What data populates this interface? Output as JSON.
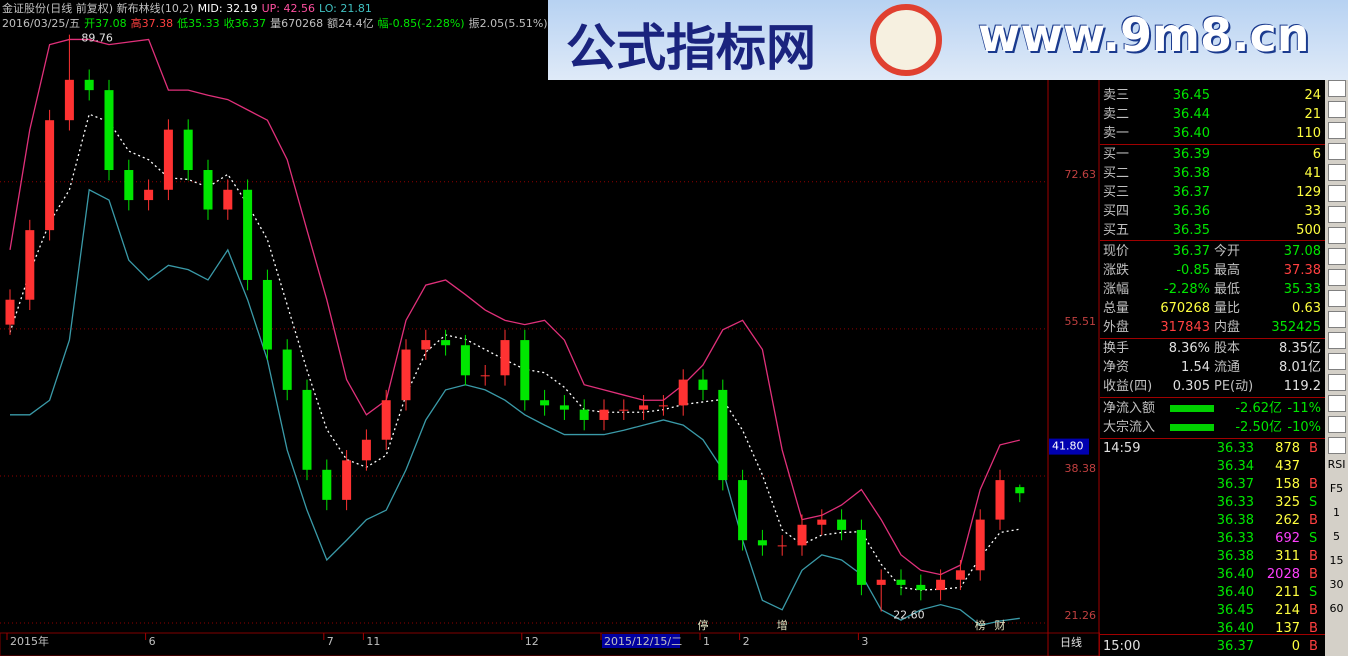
{
  "header": {
    "line1": [
      {
        "text": "金证股份(日线 前复权) 新布林线(10,2)",
        "color": "#c0c0c0"
      },
      {
        "text": "MID: 32.19",
        "color": "#ffffff"
      },
      {
        "text": "UP: 42.56",
        "color": "#ff50a0"
      },
      {
        "text": "LO: 21.81",
        "color": "#40c0c0"
      }
    ],
    "line2": [
      {
        "text": "2016/03/25/五",
        "color": "#c0c0c0"
      },
      {
        "text": "开37.08",
        "color": "#00e600"
      },
      {
        "text": "高37.38",
        "color": "#ff4040"
      },
      {
        "text": "低35.33",
        "color": "#00e600"
      },
      {
        "text": "收36.37",
        "color": "#00e600"
      },
      {
        "text": "量670268",
        "color": "#c0c0c0"
      },
      {
        "text": "额24.4亿",
        "color": "#c0c0c0"
      },
      {
        "text": "幅-0.85(-2.28%)",
        "color": "#00e600"
      },
      {
        "text": "振2.05(5.51%)",
        "color": "#c0c0c0"
      }
    ]
  },
  "watermark": {
    "title": "公式指标网",
    "url": "www.9m8.cn"
  },
  "chart_data": {
    "type": "candlestick",
    "categories": [
      "2015年",
      null,
      null,
      null,
      null,
      null,
      null,
      "6",
      null,
      null,
      null,
      null,
      null,
      null,
      null,
      null,
      "7",
      null,
      "11",
      null,
      null,
      null,
      null,
      null,
      null,
      null,
      "12",
      null,
      null,
      null,
      "2015/12/15/二",
      null,
      null,
      null,
      null,
      "1",
      null,
      "2",
      null,
      null,
      null,
      null,
      null,
      "3",
      null,
      null,
      null,
      null,
      null,
      null,
      null,
      null
    ],
    "open": [
      56.0,
      58.9,
      67.0,
      79.8,
      84.5,
      83.3,
      74.0,
      70.5,
      71.7,
      78.7,
      74.0,
      69.4,
      71.7,
      61.2,
      53.1,
      48.4,
      39.1,
      35.6,
      40.2,
      42.6,
      47.2,
      53.1,
      54.2,
      53.6,
      50.1,
      50.1,
      54.2,
      47.2,
      46.6,
      46.1,
      44.9,
      46.1,
      46.1,
      46.6,
      46.6,
      49.6,
      48.4,
      37.9,
      30.9,
      30.3,
      30.3,
      32.7,
      33.3,
      32.1,
      25.7,
      26.3,
      25.7,
      25.1,
      26.3,
      27.4,
      33.3,
      37.08
    ],
    "high": [
      60.1,
      68.2,
      81.0,
      89.76,
      85.7,
      84.5,
      75.2,
      72.9,
      79.9,
      79.9,
      75.2,
      72.9,
      72.9,
      62.4,
      54.3,
      49.6,
      40.3,
      41.4,
      43.8,
      48.4,
      54.3,
      55.4,
      55.4,
      54.8,
      51.3,
      55.4,
      55.4,
      48.4,
      47.8,
      47.3,
      47.3,
      47.3,
      47.8,
      47.8,
      50.8,
      50.8,
      49.6,
      39.1,
      32.1,
      31.5,
      33.9,
      34.5,
      34.5,
      33.3,
      27.5,
      27.5,
      26.9,
      27.5,
      28.6,
      34.5,
      39.1,
      37.38
    ],
    "low": [
      54.8,
      57.7,
      65.8,
      78.6,
      82.1,
      72.8,
      69.3,
      69.3,
      70.5,
      72.8,
      68.2,
      68.2,
      60.0,
      51.9,
      47.2,
      37.9,
      34.4,
      34.4,
      39.0,
      41.4,
      46.0,
      51.9,
      52.4,
      48.9,
      48.9,
      48.9,
      46.0,
      45.4,
      44.9,
      43.7,
      43.7,
      44.9,
      44.9,
      45.4,
      45.4,
      47.2,
      36.7,
      29.7,
      29.1,
      29.1,
      29.1,
      31.5,
      30.9,
      24.5,
      22.6,
      24.5,
      23.9,
      23.9,
      25.1,
      26.2,
      32.1,
      35.33
    ],
    "close": [
      58.9,
      67.0,
      79.8,
      84.5,
      83.3,
      74.0,
      70.5,
      71.7,
      78.7,
      74.0,
      69.4,
      71.7,
      61.2,
      53.1,
      48.4,
      39.1,
      35.6,
      40.2,
      42.6,
      47.2,
      53.1,
      54.2,
      53.6,
      50.1,
      50.1,
      54.2,
      47.2,
      46.6,
      46.1,
      44.9,
      46.1,
      46.1,
      46.6,
      46.6,
      49.6,
      48.4,
      37.9,
      30.9,
      30.3,
      30.3,
      32.7,
      33.3,
      32.1,
      25.7,
      26.3,
      25.7,
      25.1,
      26.3,
      27.4,
      33.3,
      37.9,
      36.37
    ],
    "up_color": "#ff3232",
    "down_color": "#00e600",
    "bands": [
      {
        "color": "#e0307a",
        "dash": false,
        "values": [
          64.7,
          78.7,
          88.6,
          89.2,
          89.2,
          88.6,
          88.9,
          89.2,
          83.3,
          83.3,
          82.7,
          82.2,
          81.0,
          79.8,
          75.2,
          67.0,
          58.9,
          49.6,
          45.5,
          47.2,
          56.5,
          60.6,
          61.2,
          59.5,
          57.7,
          56.5,
          56.0,
          56.5,
          54.2,
          49.0,
          48.4,
          47.8,
          47.2,
          47.2,
          49.0,
          51.3,
          55.4,
          56.5,
          53.1,
          41.4,
          33.3,
          33.8,
          35.0,
          36.8,
          33.3,
          29.2,
          27.4,
          26.9,
          28.0,
          36.8,
          42.0,
          42.56
        ]
      },
      {
        "color": "#ffffff",
        "dash": true,
        "values": [
          55.1,
          62.1,
          67.9,
          71.7,
          80.5,
          79.6,
          76.2,
          75.2,
          73.1,
          72.9,
          72.0,
          73.5,
          70.0,
          65.9,
          58.3,
          50.7,
          43.8,
          40.3,
          39.4,
          40.8,
          47.8,
          52.8,
          54.8,
          54.3,
          53.1,
          51.9,
          50.8,
          50.4,
          48.7,
          46.1,
          45.8,
          45.8,
          45.8,
          46.1,
          46.7,
          47.0,
          47.3,
          43.7,
          38.5,
          32.1,
          30.4,
          31.5,
          31.8,
          31.9,
          28.1,
          25.4,
          25.1,
          25.2,
          25.4,
          28.9,
          31.8,
          32.19
        ]
      },
      {
        "color": "#3a9aa8",
        "dash": false,
        "values": [
          45.5,
          45.5,
          47.2,
          54.2,
          71.7,
          70.5,
          63.5,
          61.2,
          62.9,
          62.4,
          61.2,
          64.7,
          58.9,
          51.9,
          41.4,
          34.4,
          28.6,
          30.9,
          33.3,
          34.4,
          39.1,
          44.9,
          48.4,
          49.0,
          48.4,
          47.2,
          45.5,
          44.3,
          43.2,
          43.2,
          43.2,
          43.7,
          44.3,
          44.9,
          44.3,
          42.6,
          39.1,
          30.9,
          23.9,
          22.8,
          27.4,
          29.2,
          28.6,
          26.9,
          22.8,
          21.6,
          22.8,
          23.4,
          22.8,
          21.0,
          21.5,
          21.81
        ]
      }
    ],
    "annotations": [
      {
        "value": 89.76,
        "label": "89.76"
      },
      {
        "value": 22.6,
        "label": "22.60"
      }
    ],
    "events": [
      null,
      null,
      null,
      null,
      null,
      null,
      null,
      null,
      null,
      null,
      null,
      null,
      null,
      null,
      null,
      null,
      null,
      null,
      null,
      null,
      null,
      null,
      null,
      null,
      null,
      null,
      null,
      null,
      null,
      null,
      null,
      null,
      null,
      null,
      null,
      "停",
      null,
      null,
      null,
      "增",
      null,
      null,
      null,
      null,
      null,
      null,
      null,
      null,
      null,
      "榜",
      "财",
      null
    ],
    "ylim": [
      20.1,
      90.3
    ],
    "yticks": [
      21.26,
      38.38,
      55.51,
      72.63
    ],
    "grid": true,
    "cursor": {
      "value": 41.8,
      "label": "41.80"
    }
  },
  "order_book": [
    [
      "卖三",
      "36.45",
      "24"
    ],
    [
      "卖二",
      "36.44",
      "21"
    ],
    [
      "卖一",
      "36.40",
      "110"
    ],
    [
      "买一",
      "36.39",
      "6"
    ],
    [
      "买二",
      "36.38",
      "41"
    ],
    [
      "买三",
      "36.37",
      "129"
    ],
    [
      "买四",
      "36.36",
      "33"
    ],
    [
      "买五",
      "36.35",
      "500"
    ]
  ],
  "quote": [
    {
      "l1": "现价",
      "v1": "36.37",
      "c1": "#00e600",
      "l2": "今开",
      "v2": "37.08",
      "c2": "#00e600"
    },
    {
      "l1": "涨跌",
      "v1": "-0.85",
      "c1": "#00e600",
      "l2": "最高",
      "v2": "37.38",
      "c2": "#ff4040"
    },
    {
      "l1": "涨幅",
      "v1": "-2.28%",
      "c1": "#00e600",
      "l2": "最低",
      "v2": "35.33",
      "c2": "#00e600"
    },
    {
      "l1": "总量",
      "v1": "670268",
      "c1": "#ffff40",
      "l2": "量比",
      "v2": "0.63",
      "c2": "#ffff40"
    },
    {
      "l1": "外盘",
      "v1": "317843",
      "c1": "#ff4040",
      "l2": "内盘",
      "v2": "352425",
      "c2": "#00e600"
    },
    {
      "l1": "换手",
      "v1": "8.36%",
      "c1": "#e0e0e0",
      "l2": "股本",
      "v2": "8.35亿",
      "c2": "#e0e0e0"
    },
    {
      "l1": "净资",
      "v1": "1.54",
      "c1": "#e0e0e0",
      "l2": "流通",
      "v2": "8.01亿",
      "c2": "#e0e0e0"
    },
    {
      "l1": "收益(四)",
      "v1": "0.305",
      "c1": "#e0e0e0",
      "l2": "PE(动)",
      "v2": "119.2",
      "c2": "#e0e0e0"
    }
  ],
  "flow": [
    [
      "净流入额",
      "-2.62亿",
      "-11%"
    ],
    [
      "大宗流入",
      "-2.50亿",
      "-10%"
    ]
  ],
  "trades": [
    {
      "time": "14:59",
      "price": "36.33",
      "vol": "878",
      "side": "B"
    },
    {
      "price": "36.34",
      "vol": "437"
    },
    {
      "price": "36.37",
      "vol": "158",
      "side": "B"
    },
    {
      "price": "36.33",
      "vol": "325",
      "side": "S"
    },
    {
      "price": "36.38",
      "vol": "262",
      "side": "B"
    },
    {
      "price": "36.33",
      "vol": "692",
      "side": "S",
      "color": "#ff40ff"
    },
    {
      "price": "36.38",
      "vol": "311",
      "side": "B"
    },
    {
      "price": "36.40",
      "vol": "2028",
      "side": "B",
      "color": "#ff40ff"
    },
    {
      "price": "36.40",
      "vol": "211",
      "side": "S"
    },
    {
      "price": "36.45",
      "vol": "214",
      "side": "B"
    },
    {
      "price": "36.40",
      "vol": "137",
      "side": "B"
    },
    {
      "time": "15:00",
      "price": "36.37",
      "vol": "0",
      "side": "B"
    }
  ],
  "side_strip": [
    "RSI",
    "F5",
    "1",
    "5",
    "15",
    "30",
    "60"
  ],
  "footer": {
    "period": "日线"
  }
}
